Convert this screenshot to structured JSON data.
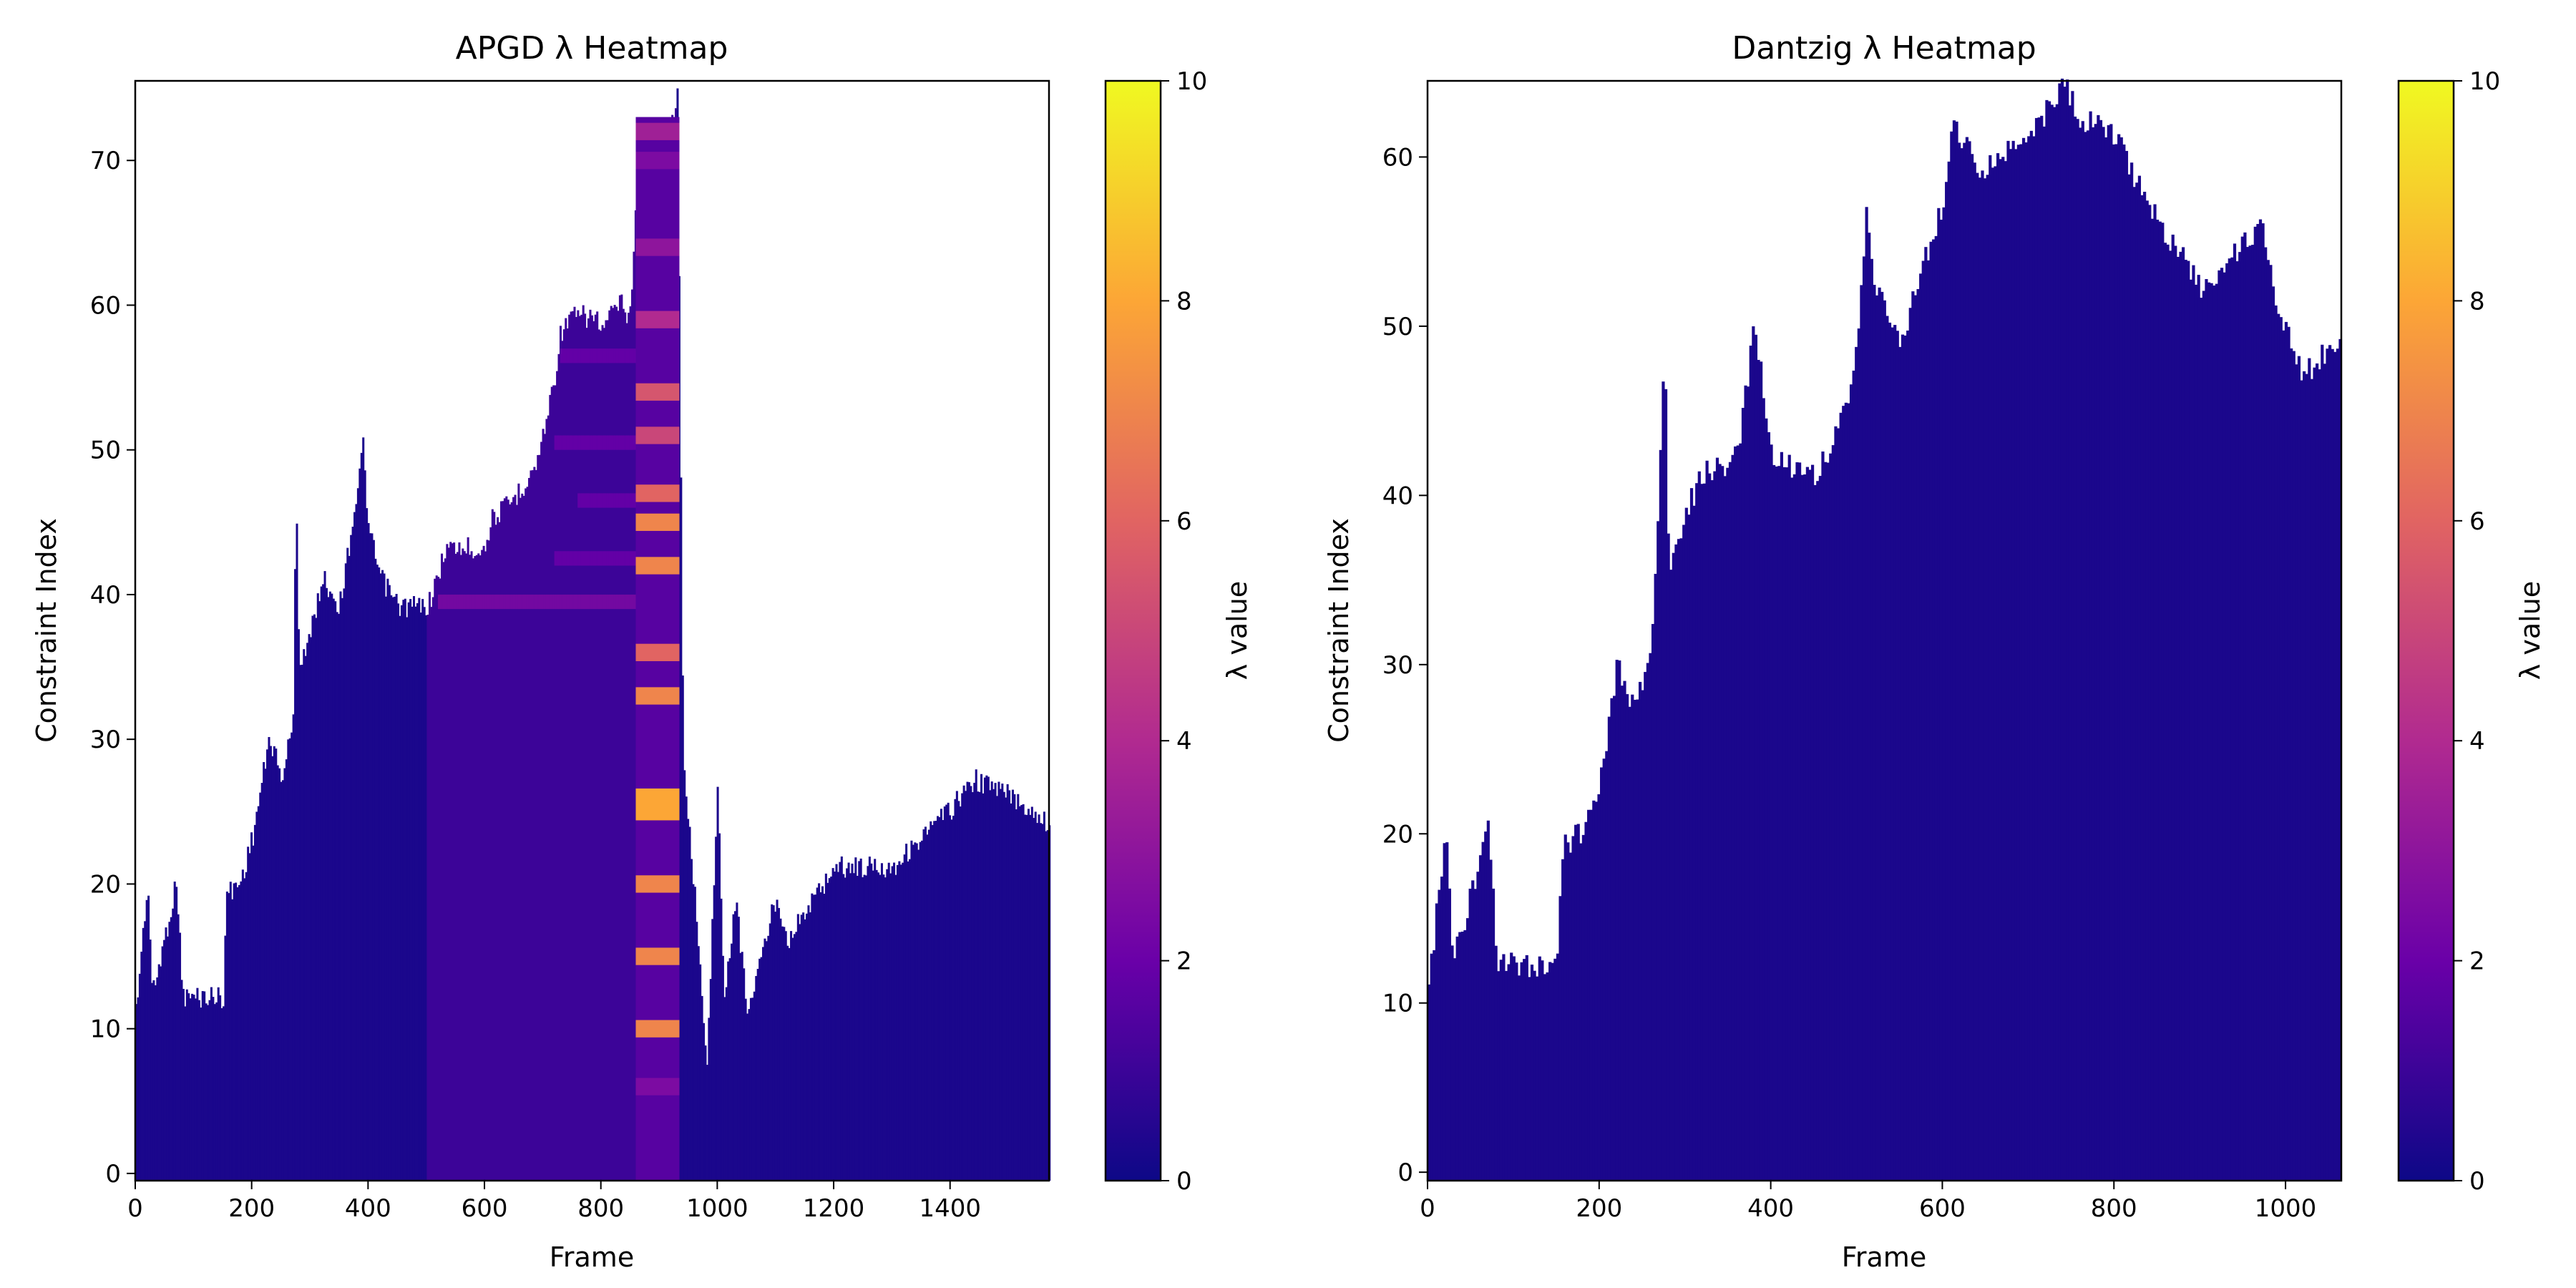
{
  "colors": {
    "colormap": [
      "#0d0887",
      "#6a00a8",
      "#b12a90",
      "#e16462",
      "#fca636",
      "#f0f921"
    ],
    "frame": "#000000",
    "background": "#ffffff"
  },
  "chart_data": [
    {
      "type": "heatmap",
      "title": "APGD λ Heatmap",
      "xlabel": "Frame",
      "ylabel": "Constraint Index",
      "colorbar_label": "λ value",
      "xlim": [
        0,
        1570
      ],
      "ylim": [
        -0.5,
        75.5
      ],
      "clim": [
        0,
        10
      ],
      "xticks": [
        0,
        200,
        400,
        600,
        800,
        1000,
        1200,
        1400
      ],
      "yticks": [
        0,
        10,
        20,
        30,
        40,
        50,
        60,
        70
      ],
      "cticks": [
        0,
        2,
        4,
        6,
        8,
        10
      ],
      "active_constraint_profile": [
        [
          0,
          12
        ],
        [
          20,
          21
        ],
        [
          28,
          13
        ],
        [
          70,
          21
        ],
        [
          80,
          13
        ],
        [
          150,
          13
        ],
        [
          155,
          20
        ],
        [
          180,
          21
        ],
        [
          200,
          24
        ],
        [
          230,
          31
        ],
        [
          250,
          28
        ],
        [
          270,
          32
        ],
        [
          275,
          49
        ],
        [
          280,
          36
        ],
        [
          300,
          38
        ],
        [
          320,
          42
        ],
        [
          350,
          40
        ],
        [
          380,
          48
        ],
        [
          390,
          51
        ],
        [
          400,
          45
        ],
        [
          420,
          42
        ],
        [
          450,
          40
        ],
        [
          500,
          40
        ],
        [
          520,
          42
        ],
        [
          530,
          44
        ],
        [
          600,
          44
        ],
        [
          610,
          46
        ],
        [
          640,
          47
        ],
        [
          660,
          48
        ],
        [
          690,
          50
        ],
        [
          700,
          52
        ],
        [
          720,
          56
        ],
        [
          730,
          59
        ],
        [
          750,
          60
        ],
        [
          790,
          60
        ],
        [
          800,
          59
        ],
        [
          830,
          61
        ],
        [
          850,
          60
        ],
        [
          860,
          70
        ],
        [
          880,
          73
        ],
        [
          920,
          73
        ],
        [
          930,
          76
        ],
        [
          940,
          30
        ],
        [
          960,
          20
        ],
        [
          980,
          8
        ],
        [
          1000,
          28
        ],
        [
          1010,
          12
        ],
        [
          1030,
          20
        ],
        [
          1050,
          12
        ],
        [
          1070,
          15
        ],
        [
          1100,
          20
        ],
        [
          1120,
          17
        ],
        [
          1200,
          22
        ],
        [
          1300,
          22
        ],
        [
          1400,
          26
        ],
        [
          1440,
          28
        ],
        [
          1500,
          27
        ],
        [
          1570,
          25
        ]
      ],
      "base_lambda": 0.3,
      "mid_lambda_region": {
        "frames": [
          500,
          930
        ],
        "value": 1.0
      },
      "highlight_column": {
        "frames": [
          860,
          935
        ],
        "rows_lambda": [
          [
            6,
            2.5
          ],
          [
            10,
            7.0
          ],
          [
            15,
            7.0
          ],
          [
            20,
            7.0
          ],
          [
            25,
            8.0
          ],
          [
            26,
            8.0
          ],
          [
            33,
            7.0
          ],
          [
            36,
            6.0
          ],
          [
            42,
            7.0
          ],
          [
            45,
            7.0
          ],
          [
            47,
            6.0
          ],
          [
            51,
            5.0
          ],
          [
            54,
            5.5
          ],
          [
            59,
            4.0
          ],
          [
            64,
            3.0
          ],
          [
            70,
            2.5
          ],
          [
            72,
            3.5
          ]
        ]
      },
      "staircase_bands": [
        {
          "frames": [
            520,
            930
          ],
          "rows": [
            39,
            40
          ],
          "value": 2.5
        },
        {
          "frames": [
            720,
            930
          ],
          "rows": [
            42,
            43
          ],
          "value": 2.0
        },
        {
          "frames": [
            760,
            930
          ],
          "rows": [
            46,
            47
          ],
          "value": 2.0
        },
        {
          "frames": [
            720,
            930
          ],
          "rows": [
            50,
            51
          ],
          "value": 2.0
        },
        {
          "frames": [
            730,
            930
          ],
          "rows": [
            56,
            57
          ],
          "value": 2.0
        }
      ]
    },
    {
      "type": "heatmap",
      "title": "Dantzig λ Heatmap",
      "xlabel": "Frame",
      "ylabel": "Constraint Index",
      "colorbar_label": "λ value",
      "xlim": [
        0,
        1065
      ],
      "ylim": [
        -0.5,
        64.5
      ],
      "clim": [
        0,
        10
      ],
      "xticks": [
        0,
        200,
        400,
        600,
        800,
        1000
      ],
      "yticks": [
        0,
        10,
        20,
        30,
        40,
        50,
        60
      ],
      "cticks": [
        0,
        2,
        4,
        6,
        8,
        10
      ],
      "active_constraint_profile": [
        [
          0,
          12
        ],
        [
          20,
          21
        ],
        [
          28,
          13
        ],
        [
          70,
          21
        ],
        [
          80,
          13
        ],
        [
          150,
          13
        ],
        [
          155,
          20
        ],
        [
          180,
          21
        ],
        [
          200,
          24
        ],
        [
          220,
          31
        ],
        [
          240,
          28
        ],
        [
          260,
          32
        ],
        [
          275,
          49
        ],
        [
          280,
          36
        ],
        [
          300,
          40
        ],
        [
          320,
          42
        ],
        [
          360,
          43
        ],
        [
          380,
          51
        ],
        [
          400,
          43
        ],
        [
          450,
          42
        ],
        [
          490,
          46
        ],
        [
          500,
          50
        ],
        [
          510,
          58
        ],
        [
          520,
          53
        ],
        [
          550,
          50
        ],
        [
          580,
          55
        ],
        [
          600,
          58
        ],
        [
          610,
          63
        ],
        [
          640,
          60
        ],
        [
          700,
          62
        ],
        [
          740,
          65
        ],
        [
          760,
          63
        ],
        [
          800,
          62
        ],
        [
          840,
          58
        ],
        [
          900,
          53
        ],
        [
          940,
          55
        ],
        [
          970,
          57
        ],
        [
          990,
          52
        ],
        [
          1020,
          48
        ],
        [
          1065,
          50
        ]
      ],
      "base_lambda": 0.3
    }
  ]
}
